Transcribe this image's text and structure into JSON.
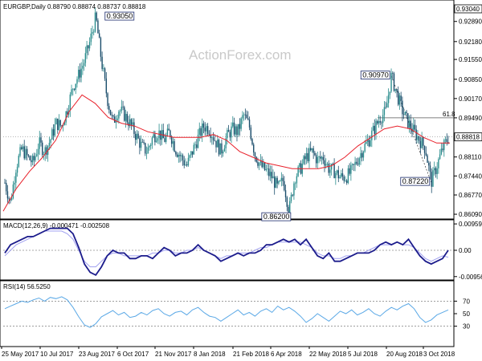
{
  "chart_data": {
    "type": "candlestick",
    "header": "EURGBP,Daily 0.88790 0.88874 0.88737 0.88818",
    "watermark": "ActionForex.com",
    "price_axis": {
      "ylim": [
        0.8595,
        0.9325
      ],
      "ticks": [
        "0.92890",
        "0.92180",
        "0.91550",
        "0.90850",
        "0.90170",
        "0.89490",
        "0.88110",
        "0.87440",
        "0.86770",
        "0.86090"
      ],
      "current_price": "0.88818",
      "top_price": "0.93040"
    },
    "x_axis": {
      "tick_labels": [
        "25 May 2017",
        "10 Jul 2017",
        "23 Aug 2017",
        "6 Oct 2017",
        "21 Nov 2017",
        "8 Jan 2018",
        "21 Feb 2018",
        "6 Apr 2018",
        "22 May 2018",
        "5 Jul 2018",
        "20 Aug 2018",
        "3 Oct 2018"
      ]
    },
    "price_path": [
      0.872,
      0.865,
      0.878,
      0.884,
      0.881,
      0.879,
      0.886,
      0.883,
      0.887,
      0.893,
      0.892,
      0.898,
      0.906,
      0.91,
      0.915,
      0.922,
      0.9305,
      0.915,
      0.902,
      0.893,
      0.898,
      0.896,
      0.893,
      0.889,
      0.885,
      0.883,
      0.888,
      0.89,
      0.887,
      0.89,
      0.884,
      0.881,
      0.878,
      0.883,
      0.888,
      0.892,
      0.891,
      0.887,
      0.883,
      0.888,
      0.891,
      0.89,
      0.896,
      0.892,
      0.882,
      0.878,
      0.876,
      0.874,
      0.87,
      0.873,
      0.862,
      0.874,
      0.877,
      0.881,
      0.883,
      0.88,
      0.881,
      0.877,
      0.876,
      0.874,
      0.874,
      0.876,
      0.88,
      0.884,
      0.887,
      0.891,
      0.895,
      0.897,
      0.9097,
      0.903,
      0.897,
      0.893,
      0.89,
      0.887,
      0.884,
      0.8722,
      0.878,
      0.884,
      0.888
    ],
    "ma_path": [
      0.862,
      0.87,
      0.876,
      0.881,
      0.887,
      0.897,
      0.903,
      0.9,
      0.895,
      0.893,
      0.892,
      0.89,
      0.889,
      0.888,
      0.888,
      0.888,
      0.889,
      0.887,
      0.883,
      0.881,
      0.879,
      0.878,
      0.877,
      0.877,
      0.877,
      0.878,
      0.881,
      0.885,
      0.888,
      0.891,
      0.892,
      0.891,
      0.888,
      0.886,
      0.886
    ],
    "annotations": [
      {
        "label": "0.93050",
        "x": 23,
        "y": 0.9305,
        "anchor": "left"
      },
      {
        "label": "0.86200",
        "x": 50,
        "y": 0.862,
        "anchor": "below"
      },
      {
        "label": "0.90970",
        "x": 68,
        "y": 0.9097,
        "anchor": "left"
      },
      {
        "label": "0.87220",
        "x": 75,
        "y": 0.8722,
        "anchor": "left"
      }
    ],
    "fib_level": {
      "label": "61.8",
      "y": 0.8949
    },
    "macd": {
      "label": "MACD(12,26,9) -0.000471 -0.002508",
      "ylim": [
        -0.0105,
        0.0105
      ],
      "ticks": [
        "0.009593",
        "0.00",
        "-0.009562"
      ],
      "main": [
        -0.001,
        0.002,
        0.003,
        0.004,
        0.005,
        0.005,
        0.006,
        0.007,
        0.008,
        0.008,
        0.008,
        0.008,
        0.006,
        0.001,
        -0.005,
        -0.008,
        -0.009,
        -0.006,
        -0.002,
        0.0,
        -0.001,
        -0.001,
        -0.003,
        -0.003,
        -0.002,
        -0.002,
        -0.003,
        -0.001,
        0.001,
        0.0,
        -0.002,
        -0.001,
        -0.001,
        0.0,
        0.002,
        0.0,
        -0.001,
        -0.002,
        -0.004,
        -0.003,
        -0.002,
        -0.001,
        -0.002,
        -0.001,
        -0.001,
        0.0,
        0.002,
        0.002,
        0.003,
        0.004,
        0.003,
        0.004,
        0.002,
        0.004,
        0.001,
        -0.002,
        -0.003,
        -0.001,
        -0.004,
        -0.004,
        -0.003,
        -0.002,
        -0.001,
        -0.001,
        -0.001,
        0.0,
        0.002,
        0.003,
        0.002,
        0.003,
        0.002,
        0.004,
        0.001,
        -0.002,
        -0.004,
        -0.005,
        -0.004,
        -0.003,
        0.0
      ],
      "signal": [
        -0.002,
        0.0,
        0.002,
        0.003,
        0.004,
        0.005,
        0.006,
        0.007,
        0.007,
        0.007,
        0.007,
        0.006,
        0.004,
        0.0,
        -0.004,
        -0.006,
        -0.006,
        -0.004,
        -0.002,
        -0.001,
        -0.001,
        -0.002,
        -0.002,
        -0.002,
        -0.002,
        -0.002,
        -0.001,
        -0.001,
        0.0,
        0.0,
        -0.001,
        -0.001,
        0.0,
        0.0,
        0.001,
        0.0,
        -0.001,
        -0.002,
        -0.003,
        -0.002,
        -0.002,
        -0.001,
        -0.001,
        -0.001,
        0.0,
        0.001,
        0.001,
        0.002,
        0.003,
        0.003,
        0.003,
        0.003,
        0.003,
        0.002,
        0.001,
        -0.001,
        -0.002,
        -0.002,
        -0.003,
        -0.003,
        -0.002,
        -0.002,
        -0.001,
        -0.001,
        0.0,
        0.001,
        0.002,
        0.002,
        0.002,
        0.003,
        0.002,
        0.002,
        0.001,
        -0.001,
        -0.003,
        -0.004,
        -0.003,
        -0.002,
        -0.0025
      ]
    },
    "rsi": {
      "label": "RSI(14) 56.5250",
      "ylim": [
        0,
        100
      ],
      "ticks": [
        "70",
        "50",
        "30"
      ],
      "values": [
        58,
        62,
        66,
        70,
        68,
        72,
        75,
        70,
        76,
        74,
        77,
        72,
        60,
        45,
        32,
        28,
        34,
        45,
        50,
        55,
        48,
        52,
        44,
        46,
        52,
        48,
        55,
        58,
        50,
        46,
        52,
        54,
        48,
        56,
        60,
        52,
        46,
        44,
        38,
        44,
        50,
        56,
        48,
        52,
        46,
        54,
        58,
        52,
        62,
        56,
        60,
        54,
        46,
        36,
        42,
        50,
        44,
        38,
        46,
        54,
        50,
        56,
        48,
        52,
        58,
        50,
        46,
        54,
        60,
        56,
        62,
        66,
        58,
        44,
        36,
        40,
        48,
        52,
        56
      ]
    },
    "colors": {
      "up_candle": "#2c8e8e",
      "down_candle": "#1a4d6b",
      "moving_average": "#e8202a",
      "macd_main": "#1c1c8c",
      "macd_signal": "#a0a0f0",
      "rsi": "#5aa8e6",
      "grid": "#888888",
      "text": "#000000",
      "watermark": "#c9c9c9"
    }
  }
}
